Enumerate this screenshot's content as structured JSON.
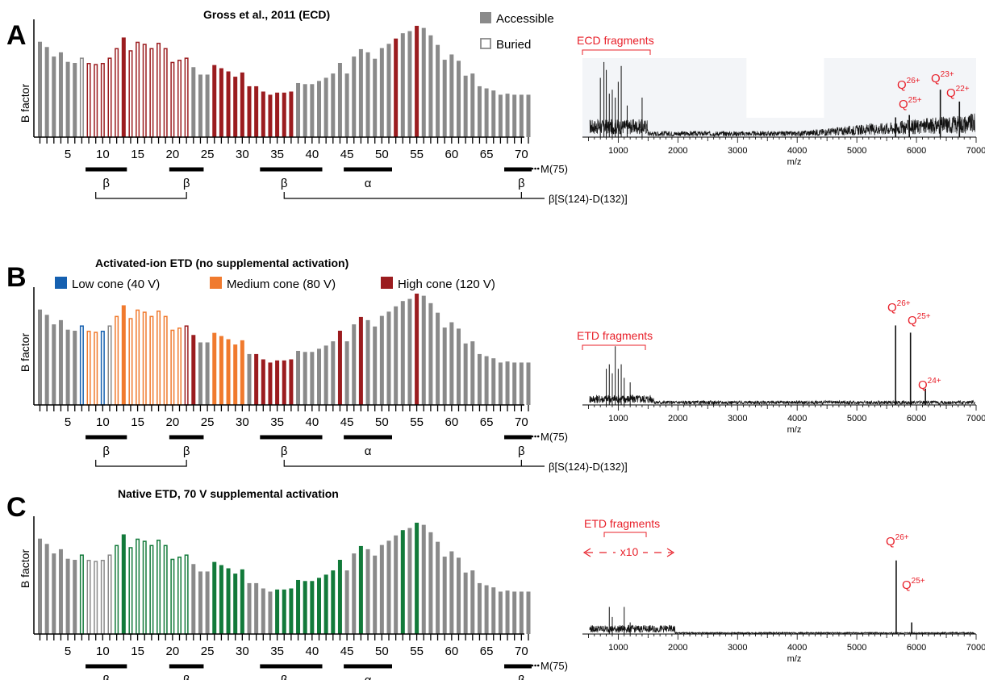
{
  "colors": {
    "accessible": "#8a8a8a",
    "buried_stroke": "#8a8a8a",
    "red": "#9b1c1f",
    "orange": "#f07a2e",
    "blue": "#1560b0",
    "green": "#127a3a",
    "annotation": "#e8202a",
    "axis": "#000000"
  },
  "legend_top": {
    "accessible": "Accessible",
    "buried": "Buried"
  },
  "bfactor_profile": [
    0.9,
    0.85,
    0.76,
    0.8,
    0.71,
    0.7,
    0.75,
    0.7,
    0.69,
    0.7,
    0.75,
    0.84,
    0.94,
    0.82,
    0.9,
    0.88,
    0.84,
    0.89,
    0.84,
    0.71,
    0.73,
    0.75,
    0.66,
    0.59,
    0.59,
    0.68,
    0.65,
    0.62,
    0.57,
    0.61,
    0.48,
    0.48,
    0.43,
    0.4,
    0.42,
    0.42,
    0.43,
    0.51,
    0.5,
    0.5,
    0.53,
    0.56,
    0.6,
    0.7,
    0.6,
    0.76,
    0.83,
    0.8,
    0.74,
    0.84,
    0.88,
    0.93,
    0.98,
    1.0,
    1.05,
    1.03,
    0.96,
    0.87,
    0.73,
    0.78,
    0.72,
    0.58,
    0.6,
    0.48,
    0.46,
    0.44,
    0.4,
    0.41,
    0.4,
    0.4,
    0.4
  ],
  "accessible_residues": [
    1,
    2,
    3,
    4,
    5,
    6,
    13,
    23,
    24,
    25,
    26,
    27,
    28,
    29,
    30,
    31,
    32,
    33,
    34,
    35,
    36,
    37,
    38,
    39,
    40,
    41,
    42,
    43,
    44,
    45,
    46,
    47,
    48,
    49,
    50,
    51,
    52,
    53,
    54,
    55,
    56,
    57,
    58,
    59,
    60,
    61,
    62,
    63,
    64,
    65,
    66,
    67,
    68,
    69,
    70,
    71
  ],
  "panels": [
    {
      "letter": "A",
      "title": "Gross et al., 2011 (ECD)",
      "chart_data": {
        "type": "bar",
        "title": "Gross et al., 2011 (ECD)",
        "ylabel": "B factor",
        "x_range": [
          1,
          71
        ],
        "x_ticks": [
          "5",
          "10",
          "15",
          "20",
          "25",
          "30",
          "35",
          "40",
          "45",
          "50",
          "55",
          "60",
          "65",
          "70"
        ],
        "coloring": "red",
        "colored_residues": [
          8,
          9,
          10,
          11,
          12,
          13,
          14,
          15,
          16,
          17,
          18,
          19,
          20,
          21,
          22,
          26,
          27,
          28,
          29,
          30,
          31,
          32,
          33,
          34,
          35,
          36,
          37,
          52,
          55
        ]
      },
      "spectrum": {
        "fragments_label": "ECD fragments",
        "xlabel": "m/z",
        "x_ticks": [
          "1000",
          "2000",
          "3000",
          "4000",
          "5000",
          "6000",
          "7000"
        ],
        "peaks": [
          {
            "label_main": "Q",
            "label_sup": "26+",
            "mz": 5650
          },
          {
            "label_main": "Q",
            "label_sup": "25+",
            "mz": 5880
          },
          {
            "label_main": "Q",
            "label_sup": "23+",
            "mz": 6400
          },
          {
            "label_main": "Q",
            "label_sup": "22+",
            "mz": 6720
          }
        ]
      }
    },
    {
      "letter": "B",
      "title": "Activated-ion ETD (no supplemental activation)",
      "legend": [
        {
          "label": "Low cone (40 V)",
          "color_key": "blue"
        },
        {
          "label": "Medium cone (80 V)",
          "color_key": "orange"
        },
        {
          "label": "High cone (120 V)",
          "color_key": "red"
        }
      ],
      "chart_data": {
        "type": "bar",
        "title": "Activated-ion ETD (no supplemental activation)",
        "ylabel": "B factor",
        "x_range": [
          1,
          71
        ],
        "x_ticks": [
          "5",
          "10",
          "15",
          "20",
          "25",
          "30",
          "35",
          "40",
          "45",
          "50",
          "55",
          "60",
          "65",
          "70"
        ],
        "low_cone_residues": [
          7,
          10
        ],
        "medium_cone_residues": [
          8,
          9,
          12,
          13,
          14,
          15,
          16,
          17,
          18,
          19,
          20,
          21,
          26,
          27,
          28,
          29,
          30
        ],
        "high_cone_residues": [
          22,
          23,
          32,
          33,
          34,
          35,
          36,
          37,
          44,
          47,
          55
        ]
      },
      "spectrum": {
        "fragments_label": "ETD fragments",
        "xlabel": "m/z",
        "x_ticks": [
          "1000",
          "2000",
          "3000",
          "4000",
          "5000",
          "6000",
          "7000"
        ],
        "peaks": [
          {
            "label_main": "Q",
            "label_sup": "26+",
            "mz": 5650
          },
          {
            "label_main": "Q",
            "label_sup": "25+",
            "mz": 5900
          },
          {
            "label_main": "Q",
            "label_sup": "24+",
            "mz": 6150
          }
        ]
      }
    },
    {
      "letter": "C",
      "title": "Native ETD, 70 V supplemental activation",
      "chart_data": {
        "type": "bar",
        "title": "Native ETD, 70 V supplemental activation",
        "ylabel": "B factor",
        "x_range": [
          1,
          71
        ],
        "x_ticks": [
          "5",
          "10",
          "15",
          "20",
          "25",
          "30",
          "35",
          "40",
          "45",
          "50",
          "55",
          "60",
          "65",
          "70"
        ],
        "coloring": "green",
        "colored_residues": [
          7,
          12,
          13,
          14,
          15,
          16,
          17,
          18,
          19,
          20,
          21,
          22,
          26,
          27,
          28,
          29,
          30,
          35,
          36,
          37,
          38,
          39,
          40,
          41,
          42,
          43,
          44,
          47,
          53,
          55
        ]
      },
      "spectrum": {
        "fragments_label": "ETD fragments",
        "zoom_label": "x10",
        "xlabel": "m/z",
        "x_ticks": [
          "1000",
          "2000",
          "3000",
          "4000",
          "5000",
          "6000",
          "7000"
        ],
        "peaks": [
          {
            "label_main": "Q",
            "label_sup": "26+",
            "mz": 5660
          },
          {
            "label_main": "Q",
            "label_sup": "25+",
            "mz": 5920
          }
        ]
      }
    }
  ],
  "secondary_structure": {
    "end_label": "M(75)",
    "link_label": "β[S(124)-D(132)]",
    "elements": [
      {
        "label": "β",
        "start": 8,
        "end": 13
      },
      {
        "label": "β",
        "start": 20,
        "end": 24
      },
      {
        "label": "β",
        "start": 33,
        "end": 41
      },
      {
        "label": "α",
        "start": 45,
        "end": 51
      },
      {
        "label": "β",
        "start": 68,
        "end": 71
      }
    ]
  }
}
